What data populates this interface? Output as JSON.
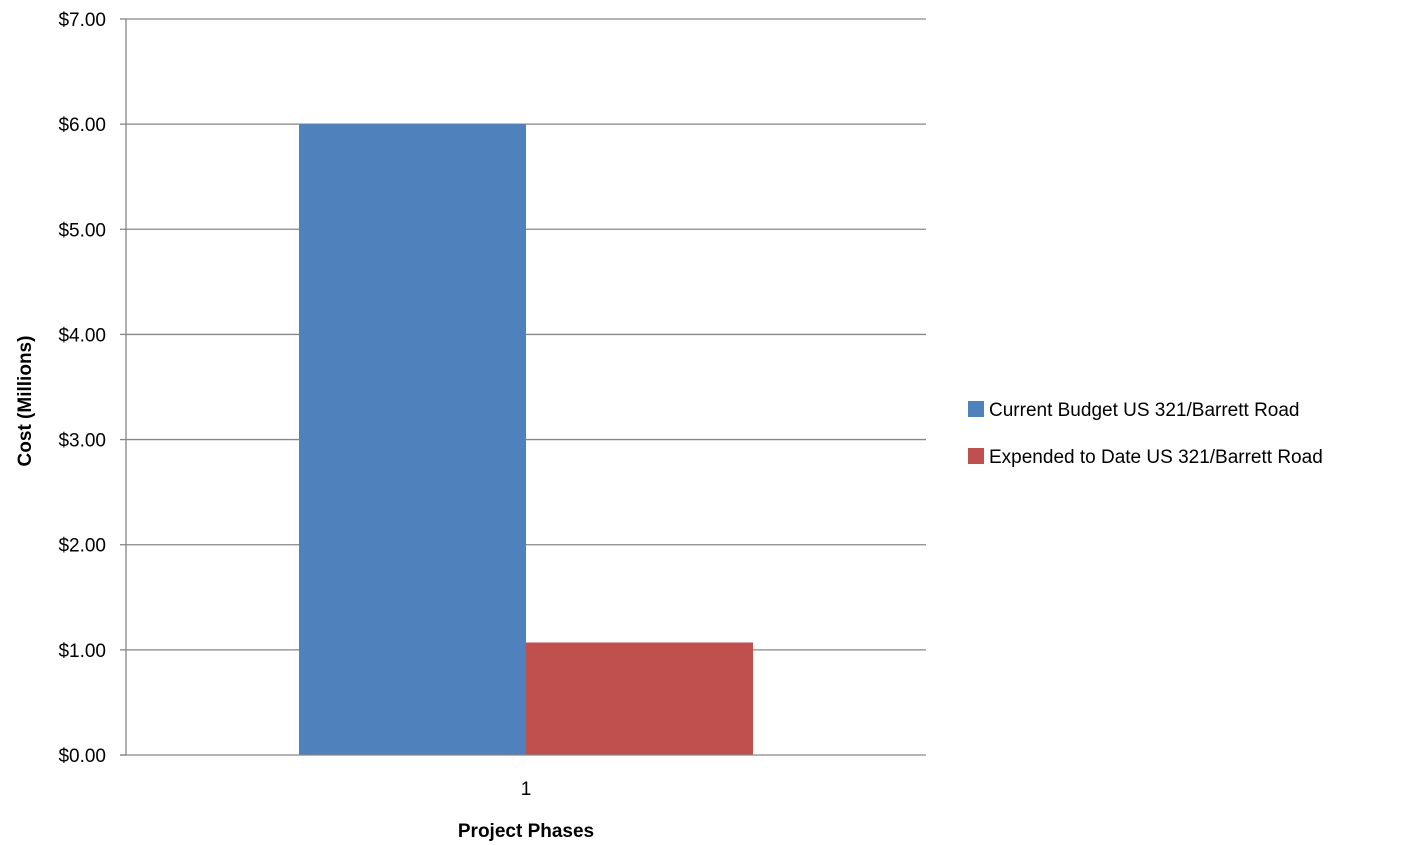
{
  "chart_data": {
    "type": "bar",
    "categories": [
      "1"
    ],
    "series": [
      {
        "name": "Current Budget US 321/Barrett Road",
        "values": [
          6.0
        ],
        "color": "#4F81BD"
      },
      {
        "name": "Expended to Date US 321/Barrett Road",
        "values": [
          1.07
        ],
        "color": "#C0504D"
      }
    ],
    "xlabel": "Project Phases",
    "ylabel": "Cost (Millions)",
    "ylim": [
      0,
      7
    ],
    "ytick_step": 1,
    "ytick_labels": [
      "$0.00",
      "$1.00",
      "$2.00",
      "$3.00",
      "$4.00",
      "$5.00",
      "$6.00",
      "$7.00"
    ],
    "grid": true,
    "gridline_color": "#868686",
    "legend_position": "right"
  }
}
